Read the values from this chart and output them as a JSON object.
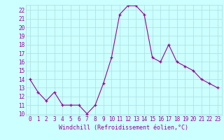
{
  "x": [
    0,
    1,
    2,
    3,
    4,
    5,
    6,
    7,
    8,
    9,
    10,
    11,
    12,
    13,
    14,
    15,
    16,
    17,
    18,
    19,
    20,
    21,
    22,
    23
  ],
  "y": [
    14,
    12.5,
    11.5,
    12.5,
    11,
    11,
    11,
    10,
    11,
    13.5,
    16.5,
    21.5,
    22.5,
    22.5,
    21.5,
    16.5,
    16,
    18,
    16,
    15.5,
    15,
    14,
    13.5,
    13
  ],
  "line_color": "#990099",
  "marker": "+",
  "marker_color": "#990099",
  "bg_color": "#ccffff",
  "grid_color": "#aadddd",
  "xlabel": "Windchill (Refroidissement éolien,°C)",
  "xlabel_color": "#990099",
  "xlabel_fontsize": 6.0,
  "tick_color": "#990099",
  "tick_fontsize": 5.5,
  "ylim": [
    9.8,
    22.6
  ],
  "xlim": [
    -0.5,
    23.5
  ],
  "yticks": [
    10,
    11,
    12,
    13,
    14,
    15,
    16,
    17,
    18,
    19,
    20,
    21,
    22
  ],
  "xticks": [
    0,
    1,
    2,
    3,
    4,
    5,
    6,
    7,
    8,
    9,
    10,
    11,
    12,
    13,
    14,
    15,
    16,
    17,
    18,
    19,
    20,
    21,
    22,
    23
  ]
}
